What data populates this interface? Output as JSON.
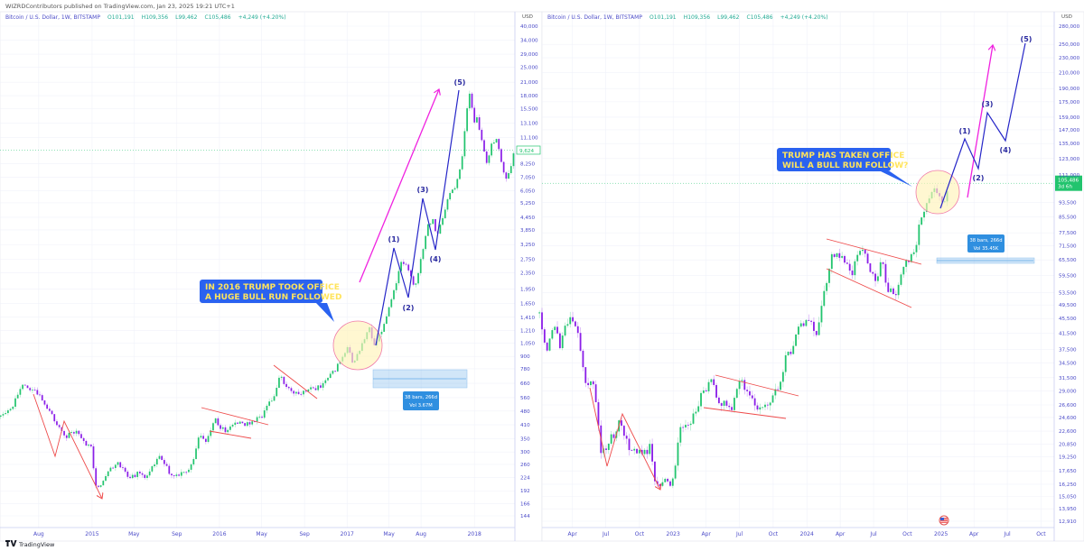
{
  "header": {
    "published": "WIZRDContributors published on TradingView.com, Jan 23, 2025 19:21 UTC+1",
    "logo": "TradingView"
  },
  "colors": {
    "up": "#22c46e",
    "down": "#8b1ee8",
    "wave": "#2626c8",
    "arrow": "#f022e0",
    "trendline": "#ee4a4a",
    "callout_bg": "#2a62f0",
    "callout_text": "#ffe45c",
    "measure": "#2f8fe0",
    "axis_text": "#4b4bc8"
  },
  "chart_data": [
    {
      "type": "candlestick",
      "scale": "log",
      "symbol": "Bitcoin / U.S. Dollar, 1W, BITSTAMP",
      "ohlc": {
        "o": "O101,191",
        "h": "H109,356",
        "l": "L99,462",
        "c": "C105,486",
        "chg": "+4,249 (+4.20%)"
      },
      "currency": "USD",
      "last_price": "9,624",
      "xlim": [
        "2014-04-12",
        "2018-04-27"
      ],
      "ylim": [
        144,
        40000
      ],
      "yticks": [
        "40,000",
        "34,000",
        "29,000",
        "25,000",
        "21,000",
        "18,000",
        "15,500",
        "13,100",
        "11,100",
        "8,250",
        "7,050",
        "6,050",
        "5,250",
        "4,450",
        "3,850",
        "3,250",
        "2,750",
        "2,350",
        "1,950",
        "1,650",
        "1,410",
        "1,210",
        "1,050",
        "900",
        "780",
        "660",
        "560",
        "480",
        "410",
        "350",
        "300",
        "260",
        "224",
        "192",
        "166",
        "144"
      ],
      "xticks": [
        {
          "label": "Aug",
          "date": "2014-08-01"
        },
        {
          "label": "2015",
          "date": "2015-01-01"
        },
        {
          "label": "May",
          "date": "2015-05-01"
        },
        {
          "label": "Sep",
          "date": "2015-09-01"
        },
        {
          "label": "2016",
          "date": "2016-01-01"
        },
        {
          "label": "May",
          "date": "2016-05-01"
        },
        {
          "label": "Sep",
          "date": "2016-09-01"
        },
        {
          "label": "2017",
          "date": "2017-01-01"
        },
        {
          "label": "May",
          "date": "2017-05-01"
        },
        {
          "label": "Aug",
          "date": "2017-08-01"
        },
        {
          "label": "2018",
          "date": "2018-01-01"
        }
      ],
      "price_path": [
        [
          "2014-04-14",
          450
        ],
        [
          "2014-05-20",
          520
        ],
        [
          "2014-06-10",
          640
        ],
        [
          "2014-07-01",
          620
        ],
        [
          "2014-07-20",
          600
        ],
        [
          "2014-08-10",
          560
        ],
        [
          "2014-09-01",
          480
        ],
        [
          "2014-09-25",
          400
        ],
        [
          "2014-10-20",
          360
        ],
        [
          "2014-11-15",
          380
        ],
        [
          "2014-12-10",
          340
        ],
        [
          "2014-12-30",
          310
        ],
        [
          "2015-01-14",
          190
        ],
        [
          "2015-02-10",
          235
        ],
        [
          "2015-03-15",
          270
        ],
        [
          "2015-04-15",
          225
        ],
        [
          "2015-05-15",
          235
        ],
        [
          "2015-06-10",
          225
        ],
        [
          "2015-07-10",
          285
        ],
        [
          "2015-08-20",
          225
        ],
        [
          "2015-09-25",
          235
        ],
        [
          "2015-10-20",
          270
        ],
        [
          "2015-11-05",
          380
        ],
        [
          "2015-11-20",
          330
        ],
        [
          "2015-12-20",
          430
        ],
        [
          "2016-01-15",
          380
        ],
        [
          "2016-02-20",
          420
        ],
        [
          "2016-03-20",
          410
        ],
        [
          "2016-05-01",
          450
        ],
        [
          "2016-06-10",
          600
        ],
        [
          "2016-06-20",
          720
        ],
        [
          "2016-07-10",
          650
        ],
        [
          "2016-08-05",
          580
        ],
        [
          "2016-09-10",
          610
        ],
        [
          "2016-10-20",
          640
        ],
        [
          "2016-11-20",
          740
        ],
        [
          "2016-12-25",
          920
        ],
        [
          "2017-01-05",
          1000
        ],
        [
          "2017-01-15",
          820
        ],
        [
          "2017-02-10",
          1000
        ],
        [
          "2017-03-05",
          1250
        ],
        [
          "2017-03-20",
          1000
        ],
        [
          "2017-04-10",
          1200
        ],
        [
          "2017-05-10",
          1800
        ],
        [
          "2017-06-05",
          2600
        ],
        [
          "2017-06-20",
          2500
        ],
        [
          "2017-07-15",
          2000
        ],
        [
          "2017-08-01",
          2800
        ],
        [
          "2017-08-20",
          4100
        ],
        [
          "2017-09-05",
          4400
        ],
        [
          "2017-09-15",
          3600
        ],
        [
          "2017-10-01",
          4300
        ],
        [
          "2017-10-20",
          5800
        ],
        [
          "2017-11-10",
          6500
        ],
        [
          "2017-11-25",
          8200
        ],
        [
          "2017-12-10",
          15000
        ],
        [
          "2017-12-17",
          19000
        ],
        [
          "2017-12-30",
          13500
        ],
        [
          "2018-01-10",
          14000
        ],
        [
          "2018-01-20",
          11200
        ],
        [
          "2018-02-05",
          8200
        ],
        [
          "2018-02-20",
          10500
        ],
        [
          "2018-03-05",
          11000
        ],
        [
          "2018-03-20",
          8200
        ],
        [
          "2018-04-01",
          6900
        ],
        [
          "2018-04-15",
          8000
        ],
        [
          "2018-04-25",
          9624
        ]
      ],
      "waves": [
        "(1)",
        "(2)",
        "(3)",
        "(4)",
        "(5)"
      ],
      "callout": [
        "IN 2016 TRUMP TOOK OFFICE",
        "A HUGE BULL RUN FOLLOWED"
      ],
      "measure": {
        "line1": "38 bars, 266d",
        "line2": "Vol 3.67M"
      }
    },
    {
      "type": "candlestick",
      "scale": "log",
      "symbol": "Bitcoin / U.S. Dollar, 1W, BITSTAMP",
      "ohlc": {
        "o": "O101,191",
        "h": "H109,356",
        "l": "L99,462",
        "c": "C105,486",
        "chg": "+4,249 (+4.20%)"
      },
      "currency": "USD",
      "last_price": "105,486",
      "countdown": "3d 6h",
      "xlim": [
        "2022-01-08",
        "2025-11-06"
      ],
      "ylim": [
        12910,
        280000
      ],
      "yticks": [
        "280,000",
        "250,000",
        "230,000",
        "210,000",
        "190,000",
        "175,000",
        "159,000",
        "147,000",
        "135,000",
        "123,000",
        "111,000",
        "93,500",
        "85,500",
        "77,500",
        "71,500",
        "65,500",
        "59,500",
        "53,500",
        "49,500",
        "45,500",
        "41,500",
        "37,500",
        "34,500",
        "31,500",
        "29,000",
        "26,600",
        "24,600",
        "22,600",
        "20,850",
        "19,250",
        "17,650",
        "16,250",
        "15,050",
        "13,950",
        "12,910"
      ],
      "xticks": [
        {
          "label": "Apr",
          "date": "2022-04-01"
        },
        {
          "label": "Jul",
          "date": "2022-07-01"
        },
        {
          "label": "Oct",
          "date": "2022-10-01"
        },
        {
          "label": "2023",
          "date": "2023-01-01"
        },
        {
          "label": "Apr",
          "date": "2023-04-01"
        },
        {
          "label": "Jul",
          "date": "2023-07-01"
        },
        {
          "label": "Oct",
          "date": "2023-10-01"
        },
        {
          "label": "2024",
          "date": "2024-01-01"
        },
        {
          "label": "Apr",
          "date": "2024-04-01"
        },
        {
          "label": "Jul",
          "date": "2024-07-01"
        },
        {
          "label": "Oct",
          "date": "2024-10-01"
        },
        {
          "label": "2025",
          "date": "2025-01-01"
        },
        {
          "label": "Apr",
          "date": "2025-04-01"
        },
        {
          "label": "Jul",
          "date": "2025-07-01"
        },
        {
          "label": "Oct",
          "date": "2025-10-01"
        }
      ],
      "price_path": [
        [
          "2022-01-01",
          47000
        ],
        [
          "2022-01-20",
          36500
        ],
        [
          "2022-02-10",
          44000
        ],
        [
          "2022-02-25",
          38500
        ],
        [
          "2022-03-28",
          47000
        ],
        [
          "2022-04-20",
          40000
        ],
        [
          "2022-05-10",
          30000
        ],
        [
          "2022-06-01",
          30000
        ],
        [
          "2022-06-18",
          19500
        ],
        [
          "2022-07-10",
          21000
        ],
        [
          "2022-08-10",
          24000
        ],
        [
          "2022-09-05",
          19800
        ],
        [
          "2022-10-10",
          19500
        ],
        [
          "2022-11-01",
          20500
        ],
        [
          "2022-11-10",
          16500
        ],
        [
          "2022-12-31",
          16500
        ],
        [
          "2023-01-20",
          23000
        ],
        [
          "2023-02-20",
          24000
        ],
        [
          "2023-03-18",
          28000
        ],
        [
          "2023-04-14",
          30500
        ],
        [
          "2023-05-10",
          27000
        ],
        [
          "2023-06-10",
          26000
        ],
        [
          "2023-06-25",
          30500
        ],
        [
          "2023-07-15",
          30000
        ],
        [
          "2023-08-15",
          26000
        ],
        [
          "2023-09-15",
          26500
        ],
        [
          "2023-10-20",
          30000
        ],
        [
          "2023-10-30",
          34500
        ],
        [
          "2023-11-20",
          37500
        ],
        [
          "2023-12-10",
          43500
        ],
        [
          "2024-01-10",
          46500
        ],
        [
          "2024-01-22",
          40000
        ],
        [
          "2024-02-15",
          52000
        ],
        [
          "2024-03-10",
          69000
        ],
        [
          "2024-03-25",
          68000
        ],
        [
          "2024-04-20",
          63000
        ],
        [
          "2024-05-01",
          58000
        ],
        [
          "2024-05-20",
          69000
        ],
        [
          "2024-06-10",
          67000
        ],
        [
          "2024-07-05",
          56000
        ],
        [
          "2024-07-25",
          68000
        ],
        [
          "2024-08-05",
          54000
        ],
        [
          "2024-09-05",
          54000
        ],
        [
          "2024-09-25",
          64000
        ],
        [
          "2024-10-20",
          69000
        ],
        [
          "2024-11-12",
          88000
        ],
        [
          "2024-11-25",
          97000
        ],
        [
          "2024-12-16",
          105000
        ],
        [
          "2024-12-30",
          93500
        ],
        [
          "2025-01-12",
          94500
        ],
        [
          "2025-01-23",
          105486
        ]
      ],
      "waves": [
        "(1)",
        "(2)",
        "(3)",
        "(4)",
        "(5)"
      ],
      "callout": [
        "TRUMP HAS TAKEN OFFICE",
        "WILL A BULL RUN FOLLOW?"
      ],
      "measure": {
        "line1": "38 bars, 266d",
        "line2": "Vol 35.45K"
      }
    }
  ]
}
